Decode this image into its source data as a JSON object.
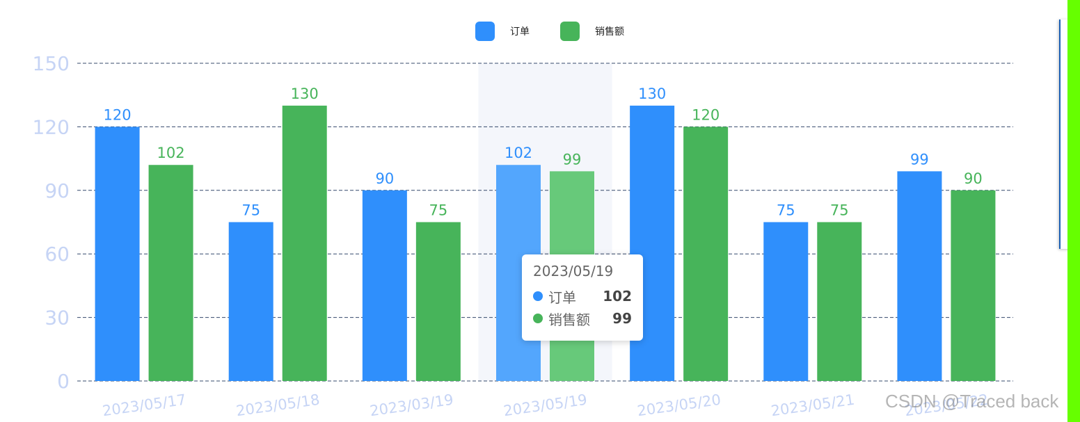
{
  "chart_data": {
    "type": "bar",
    "categories": [
      "2023/05/17",
      "2023/05/18",
      "2023/03/19",
      "2023/05/19",
      "2023/05/20",
      "2023/05/21",
      "2023/05/22"
    ],
    "series": [
      {
        "name": "订单",
        "values": [
          120,
          75,
          90,
          102,
          130,
          75,
          99
        ],
        "color": "#2f8ffc",
        "hover_color": "#53a6fd"
      },
      {
        "name": "销售额",
        "values": [
          102,
          130,
          75,
          99,
          120,
          75,
          90
        ],
        "color": "#47b45a",
        "hover_color": "#67c97a"
      }
    ],
    "yticks": [
      0,
      30,
      60,
      90,
      120,
      150
    ],
    "ylim": [
      0,
      150
    ],
    "grid": true,
    "legend": "top-center",
    "highlighted_category_index": 3,
    "axis_label_color": "#c6d4f5",
    "grid_color": "#34486b",
    "highlight_band_color": "#f4f6fb"
  },
  "tooltip": {
    "title": "2023/05/19",
    "rows": [
      {
        "name": "订单",
        "value": "102",
        "color": "#2f8ffc"
      },
      {
        "name": "销售额",
        "value": "99",
        "color": "#47b45a"
      }
    ]
  },
  "watermark": "CSDN @Traced back"
}
